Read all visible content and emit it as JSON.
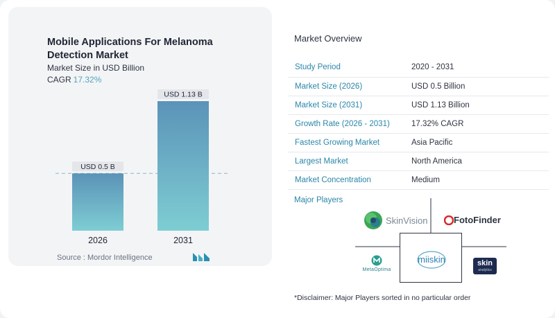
{
  "chart_data": {
    "type": "bar",
    "title": "Mobile Applications For Melanoma Detection Market",
    "subtitle": "Market Size in USD Billion",
    "cagr_label": "CAGR",
    "cagr_value": "17.32%",
    "categories": [
      "2026",
      "2031"
    ],
    "values": [
      0.5,
      1.13
    ],
    "data_labels": [
      "USD 0.5 B",
      "USD 1.13 B"
    ],
    "ylim": [
      0,
      1.13
    ],
    "reference_line": 0.5,
    "colors": {
      "bar_top": "#5b93b8",
      "bar_bottom": "#7ecdd3",
      "label_bg": "#e4e6ea",
      "dash": "#8fb3c8"
    }
  },
  "source": "Source :  Mordor Intelligence",
  "overview": {
    "title": "Market Overview",
    "rows": [
      {
        "key": "Study Period",
        "value": "2020 - 2031"
      },
      {
        "key": "Market Size (2026)",
        "value": "USD 0.5 Billion"
      },
      {
        "key": "Market Size (2031)",
        "value": "USD 1.13 Billion"
      },
      {
        "key": "Growth Rate (2026 - 2031)",
        "value": "17.32% CAGR"
      },
      {
        "key": "Fastest Growing Market",
        "value": "Asia Pacific"
      },
      {
        "key": "Largest Market",
        "value": "North America"
      },
      {
        "key": "Market Concentration",
        "value": "Medium"
      }
    ]
  },
  "players": {
    "title": "Major Players",
    "logos": {
      "skinvision": "SkinVision",
      "fotofinder": "FotoFinder",
      "metaoptima": "MetaOptima",
      "miiskin": "miiskin",
      "skin_analytics_main": "skin",
      "skin_analytics_sub": "analytics"
    }
  },
  "disclaimer": "*Disclaimer: Major Players sorted in no particular order"
}
